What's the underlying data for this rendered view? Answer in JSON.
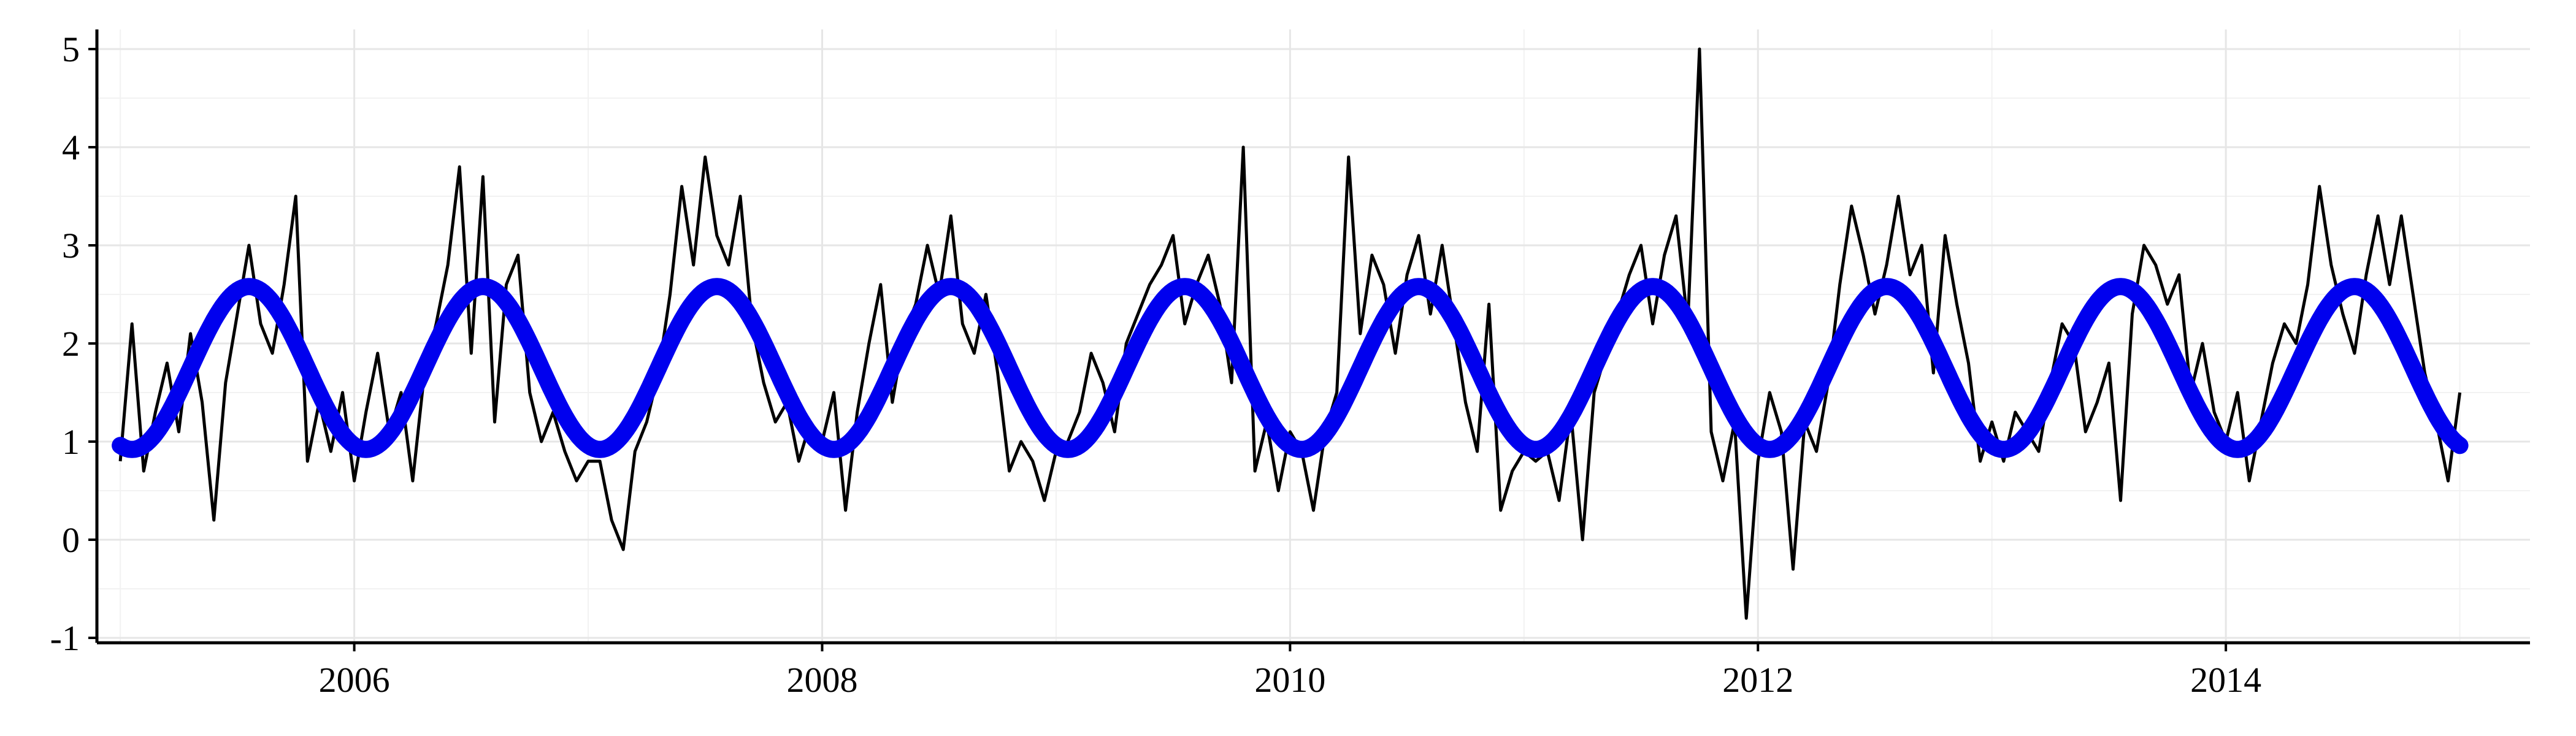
{
  "chart_data": {
    "type": "line",
    "title": "",
    "xlabel": "",
    "ylabel": "",
    "xlim": [
      2004.9,
      2015.3
    ],
    "ylim": [
      -1.05,
      5.2
    ],
    "grid": true,
    "x_ticks": [
      {
        "value": 2006,
        "label": "2006"
      },
      {
        "value": 2008,
        "label": "2008"
      },
      {
        "value": 2010,
        "label": "2010"
      },
      {
        "value": 2012,
        "label": "2012"
      },
      {
        "value": 2014,
        "label": "2014"
      }
    ],
    "y_ticks": [
      {
        "value": -1,
        "label": "-1"
      },
      {
        "value": 0,
        "label": "0"
      },
      {
        "value": 1,
        "label": "1"
      },
      {
        "value": 2,
        "label": "2"
      },
      {
        "value": 3,
        "label": "3"
      },
      {
        "value": 4,
        "label": "4"
      },
      {
        "value": 5,
        "label": "5"
      }
    ],
    "series": [
      {
        "kind": "observed",
        "color": "#000000",
        "x": [
          2005.0,
          2005.05,
          2005.1,
          2005.15,
          2005.2,
          2005.25,
          2005.3,
          2005.35,
          2005.4,
          2005.45,
          2005.5,
          2005.55,
          2005.6,
          2005.65,
          2005.7,
          2005.75,
          2005.8,
          2005.85,
          2005.9,
          2005.95,
          2006.0,
          2006.05,
          2006.1,
          2006.15,
          2006.2,
          2006.25,
          2006.3,
          2006.35,
          2006.4,
          2006.45,
          2006.5,
          2006.55,
          2006.6,
          2006.65,
          2006.7,
          2006.75,
          2006.8,
          2006.85,
          2006.9,
          2006.95,
          2007.0,
          2007.05,
          2007.1,
          2007.15,
          2007.2,
          2007.25,
          2007.3,
          2007.35,
          2007.4,
          2007.45,
          2007.5,
          2007.55,
          2007.6,
          2007.65,
          2007.7,
          2007.75,
          2007.8,
          2007.85,
          2007.9,
          2007.95,
          2008.0,
          2008.05,
          2008.1,
          2008.15,
          2008.2,
          2008.25,
          2008.3,
          2008.35,
          2008.4,
          2008.45,
          2008.5,
          2008.55,
          2008.6,
          2008.65,
          2008.7,
          2008.75,
          2008.8,
          2008.85,
          2008.9,
          2008.95,
          2009.0,
          2009.05,
          2009.1,
          2009.15,
          2009.2,
          2009.25,
          2009.3,
          2009.35,
          2009.4,
          2009.45,
          2009.5,
          2009.55,
          2009.6,
          2009.65,
          2009.7,
          2009.75,
          2009.8,
          2009.85,
          2009.9,
          2009.95,
          2010.0,
          2010.05,
          2010.1,
          2010.15,
          2010.2,
          2010.25,
          2010.3,
          2010.35,
          2010.4,
          2010.45,
          2010.5,
          2010.55,
          2010.6,
          2010.65,
          2010.7,
          2010.75,
          2010.8,
          2010.85,
          2010.9,
          2010.95,
          2011.0,
          2011.05,
          2011.1,
          2011.15,
          2011.2,
          2011.25,
          2011.3,
          2011.35,
          2011.4,
          2011.45,
          2011.5,
          2011.55,
          2011.6,
          2011.65,
          2011.7,
          2011.75,
          2011.8,
          2011.85,
          2011.9,
          2011.95,
          2012.0,
          2012.05,
          2012.1,
          2012.15,
          2012.2,
          2012.25,
          2012.3,
          2012.35,
          2012.4,
          2012.45,
          2012.5,
          2012.55,
          2012.6,
          2012.65,
          2012.7,
          2012.75,
          2012.8,
          2012.85,
          2012.9,
          2012.95,
          2013.0,
          2013.05,
          2013.1,
          2013.15,
          2013.2,
          2013.25,
          2013.3,
          2013.35,
          2013.4,
          2013.45,
          2013.5,
          2013.55,
          2013.6,
          2013.65,
          2013.7,
          2013.75,
          2013.8,
          2013.85,
          2013.9,
          2013.95,
          2014.0,
          2014.05,
          2014.1,
          2014.15,
          2014.2,
          2014.25,
          2014.3,
          2014.35,
          2014.4,
          2014.45,
          2014.5,
          2014.55,
          2014.6,
          2014.65,
          2014.7,
          2014.75,
          2014.8,
          2014.85,
          2014.9,
          2014.95,
          2015.0
        ],
        "values": [
          0.8,
          2.2,
          0.7,
          1.3,
          1.8,
          1.1,
          2.1,
          1.4,
          0.2,
          1.6,
          2.3,
          3.0,
          2.2,
          1.9,
          2.6,
          3.5,
          0.8,
          1.4,
          0.9,
          1.5,
          0.6,
          1.3,
          1.9,
          1.1,
          1.5,
          0.6,
          1.7,
          2.2,
          2.8,
          3.8,
          1.9,
          3.7,
          1.2,
          2.6,
          2.9,
          1.5,
          1.0,
          1.3,
          0.9,
          0.6,
          0.8,
          0.8,
          0.2,
          -0.1,
          0.9,
          1.2,
          1.7,
          2.5,
          3.6,
          2.8,
          3.9,
          3.1,
          2.8,
          3.5,
          2.2,
          1.6,
          1.2,
          1.4,
          0.8,
          1.2,
          1.0,
          1.5,
          0.3,
          1.3,
          2.0,
          2.6,
          1.4,
          2.1,
          2.4,
          3.0,
          2.5,
          3.3,
          2.2,
          1.9,
          2.5,
          1.7,
          0.7,
          1.0,
          0.8,
          0.4,
          0.9,
          1.0,
          1.3,
          1.9,
          1.6,
          1.1,
          2.0,
          2.3,
          2.6,
          2.8,
          3.1,
          2.2,
          2.6,
          2.9,
          2.4,
          1.6,
          4.0,
          0.7,
          1.2,
          0.5,
          1.1,
          0.9,
          0.3,
          1.1,
          1.5,
          3.9,
          2.1,
          2.9,
          2.6,
          1.9,
          2.7,
          3.1,
          2.3,
          3.0,
          2.2,
          1.4,
          0.9,
          2.4,
          0.3,
          0.7,
          0.9,
          0.8,
          0.9,
          0.4,
          1.3,
          0.0,
          1.5,
          1.9,
          2.3,
          2.7,
          3.0,
          2.2,
          2.9,
          3.3,
          2.2,
          5.0,
          1.1,
          0.6,
          1.2,
          -0.8,
          0.8,
          1.5,
          1.1,
          -0.3,
          1.2,
          0.9,
          1.6,
          2.6,
          3.4,
          2.9,
          2.3,
          2.8,
          3.5,
          2.7,
          3.0,
          1.7,
          3.1,
          2.4,
          1.8,
          0.8,
          1.2,
          0.8,
          1.3,
          1.1,
          0.9,
          1.6,
          2.2,
          2.0,
          1.1,
          1.4,
          1.8,
          0.4,
          2.3,
          3.0,
          2.8,
          2.4,
          2.7,
          1.5,
          2.0,
          1.3,
          1.0,
          1.5,
          0.6,
          1.2,
          1.8,
          2.2,
          2.0,
          2.6,
          3.6,
          2.8,
          2.3,
          1.9,
          2.7,
          3.3,
          2.6,
          3.3,
          2.5,
          1.7,
          1.2,
          0.6,
          1.5
        ]
      },
      {
        "kind": "fitted",
        "color": "#0000ee",
        "mean": 1.75,
        "amplitude": 0.83,
        "period_years": 1.0,
        "peak_year_fraction": 0.55,
        "x_range": [
          2005.0,
          2015.0
        ]
      }
    ]
  }
}
